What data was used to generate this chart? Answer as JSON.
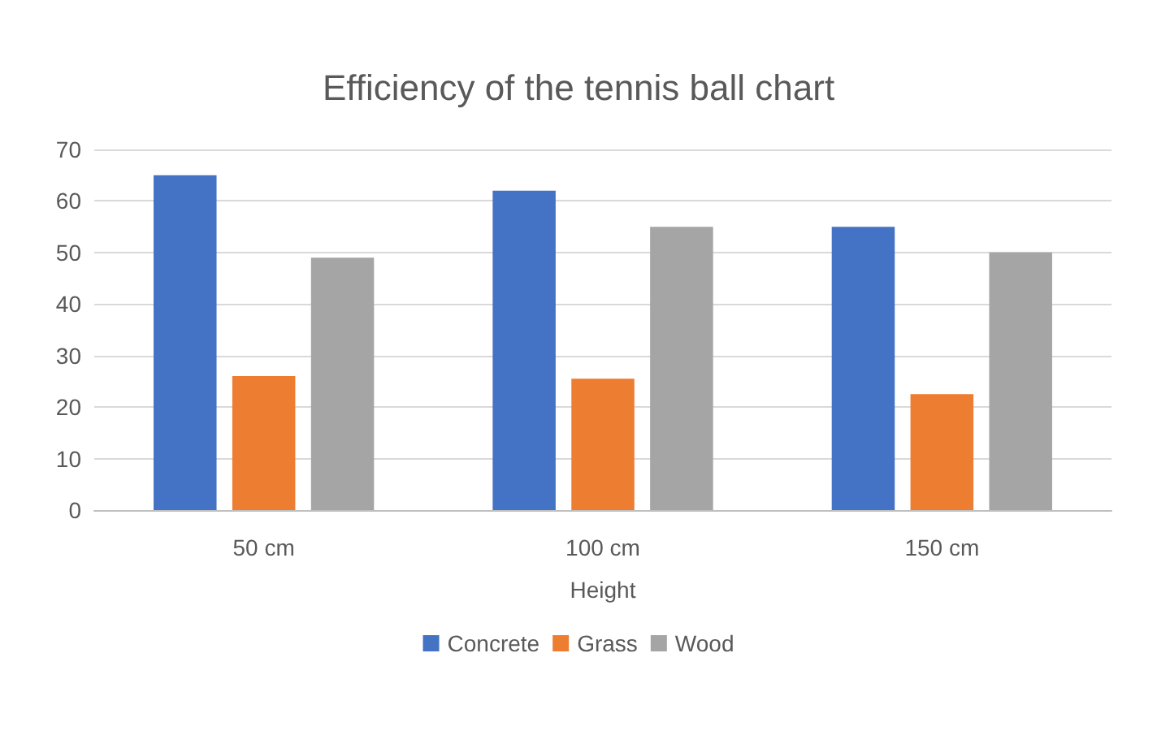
{
  "chart_data": {
    "type": "bar",
    "title": "Efficiency of the tennis ball chart",
    "xlabel": "Height",
    "categories": [
      "50 cm",
      "100 cm",
      "150 cm"
    ],
    "series": [
      {
        "name": "Concrete",
        "color": "#4472c4",
        "values": [
          65,
          62,
          55
        ]
      },
      {
        "name": "Grass",
        "color": "#ed7d31",
        "values": [
          26,
          25.5,
          22.5
        ]
      },
      {
        "name": "Wood",
        "color": "#a5a5a5",
        "values": [
          49,
          55,
          50
        ]
      }
    ],
    "ylim": [
      0,
      70
    ],
    "yticks": [
      0,
      10,
      20,
      30,
      40,
      50,
      60,
      70
    ],
    "grid": "y",
    "legend": "bottom"
  }
}
